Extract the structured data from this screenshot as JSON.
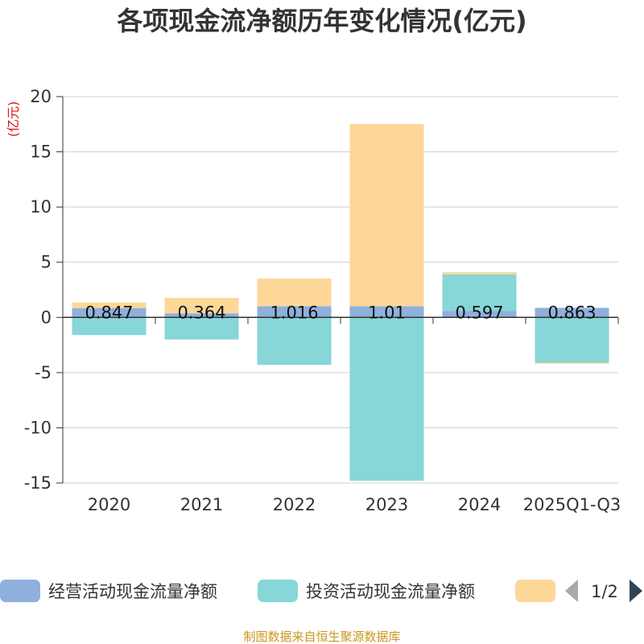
{
  "chart_data": {
    "type": "bar",
    "stacked": true,
    "title": "各项现金流净额历年变化情况(亿元)",
    "ylabel": "(亿元)",
    "ylim": [
      -15,
      20
    ],
    "yticks": [
      20,
      15,
      10,
      5,
      0,
      -5,
      -10,
      -15
    ],
    "categories": [
      "2020",
      "2021",
      "2022",
      "2023",
      "2024",
      "2025Q1-Q3"
    ],
    "series": [
      {
        "name": "经营活动现金流量净额",
        "color": "#8fb0dc",
        "values": [
          0.847,
          0.364,
          1.016,
          1.01,
          0.597,
          0.863
        ],
        "labels": [
          "0.847",
          "0.364",
          "1.016",
          "1.01",
          "0.597",
          "0.863"
        ]
      },
      {
        "name": "投资活动现金流量净额",
        "color": "#87d6d8",
        "values": [
          -1.6,
          -2.0,
          -4.3,
          -14.8,
          3.3,
          -4.1
        ]
      },
      {
        "name": "",
        "color": "#fdd797",
        "values": [
          0.5,
          1.4,
          2.5,
          16.5,
          0.2,
          -0.1
        ]
      }
    ],
    "legend_position": "bottom",
    "legend_page": "1/2",
    "source": "制图数据来自恒生聚源数据库"
  }
}
